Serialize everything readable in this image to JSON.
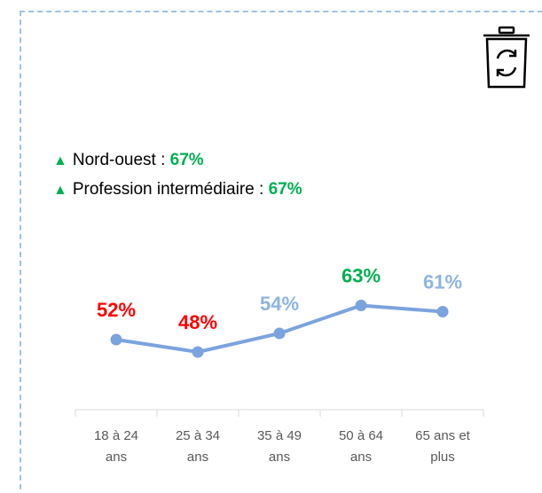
{
  "highlights": [
    {
      "label": "Nord-ouest :",
      "value": "67%"
    },
    {
      "label": "Profession intermédiaire :",
      "value": "67%"
    }
  ],
  "chart_data": {
    "type": "line",
    "categories": [
      "18 à 24 ans",
      "25 à 34 ans",
      "35 à 49 ans",
      "50 à 64 ans",
      "65 ans et plus"
    ],
    "values": [
      52,
      48,
      54,
      63,
      61
    ],
    "value_labels": [
      "52%",
      "48%",
      "54%",
      "63%",
      "61%"
    ],
    "label_colors": [
      "#ff0000",
      "#ff0000",
      "#8eb4e3",
      "#00b050",
      "#8eb4e3"
    ],
    "color": "#7ba3de"
  }
}
